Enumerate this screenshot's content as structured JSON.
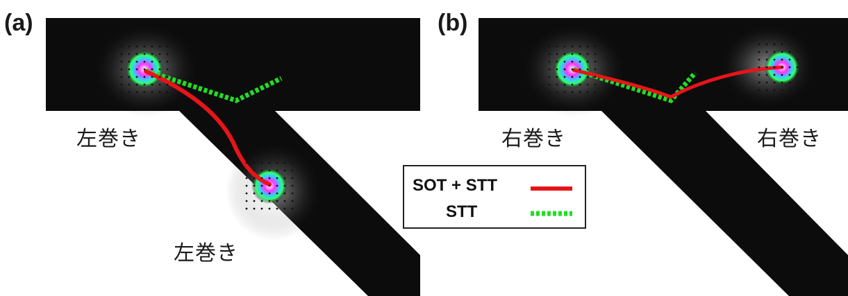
{
  "panels": [
    {
      "label": "(a)",
      "wall_labels": [
        "左巻き",
        "左巻き"
      ]
    },
    {
      "label": "(b)",
      "wall_labels": [
        "右巻き",
        "右巻き"
      ]
    }
  ],
  "legend": {
    "entries": [
      {
        "label": "SOT + STT",
        "color": "#e8141a",
        "style": "solid"
      },
      {
        "label": "STT",
        "color": "#22dd22",
        "style": "dashed"
      }
    ]
  },
  "colors": {
    "track": "#0c0c0c",
    "sot_stt": "#e8141a",
    "stt": "#22dd22"
  }
}
